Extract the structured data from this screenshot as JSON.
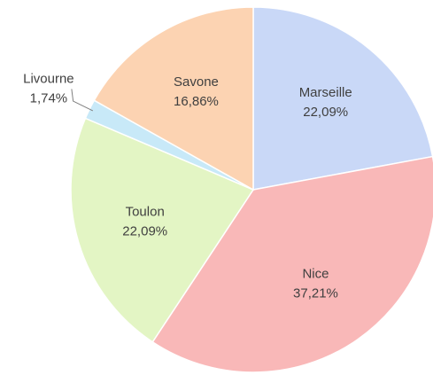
{
  "chart_data": {
    "type": "pie",
    "categories": [
      "Marseille",
      "Nice",
      "Toulon",
      "Livourne",
      "Savone"
    ],
    "values": [
      22.09,
      37.21,
      22.09,
      1.74,
      16.86
    ],
    "value_labels": [
      "22,09%",
      "37,21%",
      "22,09%",
      "1,74%",
      "16,86%"
    ],
    "colors": [
      "#c9d8f7",
      "#f9b8b8",
      "#e3f5c4",
      "#c8e9f8",
      "#fcd3b2"
    ]
  }
}
